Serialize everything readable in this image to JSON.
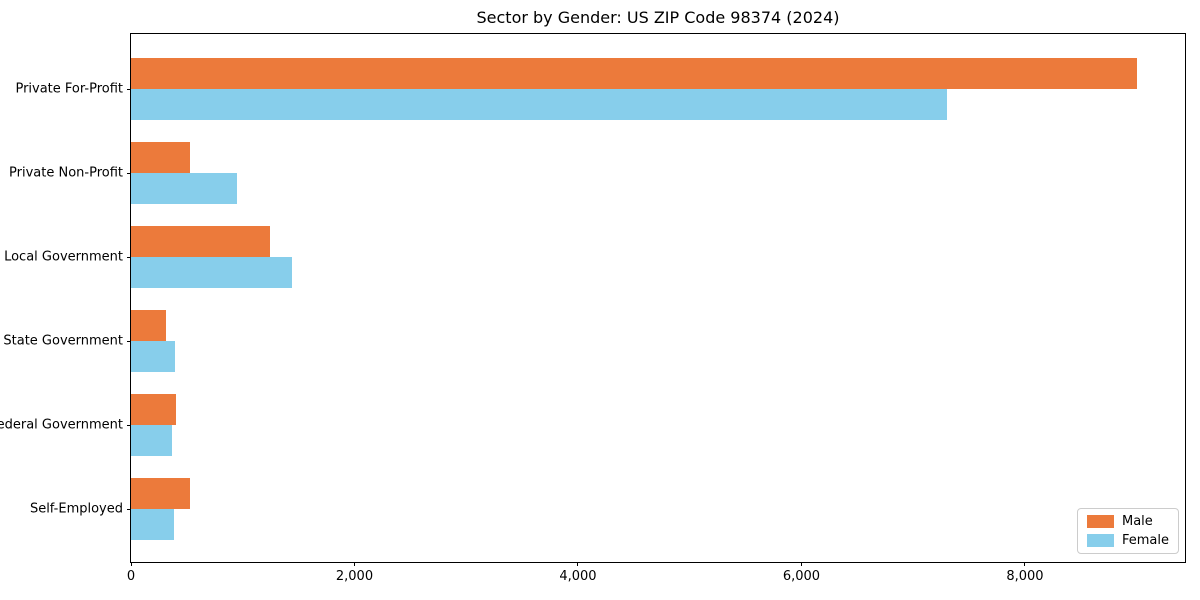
{
  "chart_data": {
    "type": "bar",
    "orientation": "horizontal",
    "title": "Sector by Gender: US ZIP Code 98374 (2024)",
    "xlabel": "",
    "ylabel": "",
    "categories": [
      "Private For-Profit",
      "Private Non-Profit",
      "Local Government",
      "State Government",
      "Federal Government",
      "Self-Employed"
    ],
    "series": [
      {
        "name": "Male",
        "color": "#EC7A3B",
        "values": [
          9000,
          530,
          1240,
          310,
          400,
          530
        ]
      },
      {
        "name": "Female",
        "color": "#87CEEB",
        "values": [
          7300,
          950,
          1440,
          390,
          370,
          380
        ]
      }
    ],
    "xlim": [
      0,
      9450
    ],
    "xticks": [
      0,
      2000,
      4000,
      6000,
      8000
    ],
    "xtick_labels": [
      "0",
      "2,000",
      "4,000",
      "6,000",
      "8,000"
    ],
    "grid": false,
    "legend": {
      "position": "lower-right"
    }
  }
}
